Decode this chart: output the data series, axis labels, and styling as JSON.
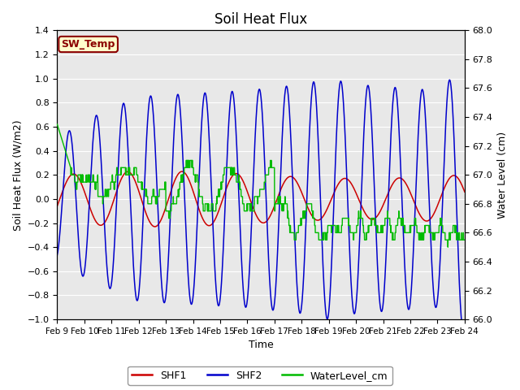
{
  "title": "Soil Heat Flux",
  "ylabel_left": "Soil Heat Flux (W/m2)",
  "ylabel_right": "Water Level (cm)",
  "xlabel": "Time",
  "ylim_left": [
    -1.0,
    1.4
  ],
  "ylim_right": [
    66.0,
    68.0
  ],
  "yticks_left": [
    -1.0,
    -0.8,
    -0.6,
    -0.4,
    -0.2,
    0.0,
    0.2,
    0.4,
    0.6,
    0.8,
    1.0,
    1.2,
    1.4
  ],
  "yticks_right": [
    66.0,
    66.2,
    66.4,
    66.6,
    66.8,
    67.0,
    67.2,
    67.4,
    67.6,
    67.8,
    68.0
  ],
  "xtick_labels": [
    "Feb 9",
    "Feb 10",
    "Feb 11",
    "Feb 12",
    "Feb 13",
    "Feb 14",
    "Feb 15",
    "Feb 16",
    "Feb 17",
    "Feb 18",
    "Feb 19",
    "Feb 20",
    "Feb 21",
    "Feb 22",
    "Feb 23",
    "Feb 24"
  ],
  "shf1_color": "#cc0000",
  "shf2_color": "#0000cc",
  "water_color": "#00bb00",
  "annotation_text": "SW_Temp",
  "annotation_bg": "#ffffcc",
  "annotation_border": "#8b0000",
  "bg_color": "#e8e8e8",
  "grid_color": "#ffffff",
  "legend_labels": [
    "SHF1",
    "SHF2",
    "WaterLevel_cm"
  ]
}
